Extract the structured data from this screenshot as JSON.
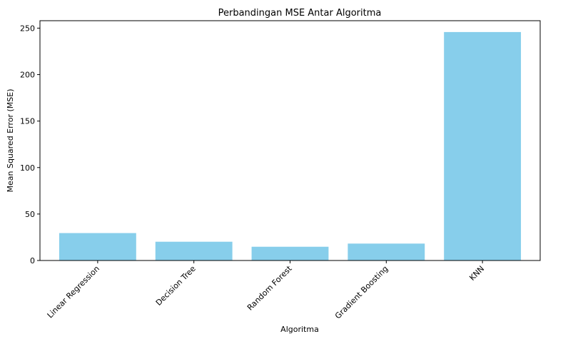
{
  "chart_data": {
    "type": "bar",
    "title": "Perbandingan MSE Antar Algoritma",
    "xlabel": "Algoritma",
    "ylabel": "Mean Squared Error (MSE)",
    "categories": [
      "Linear Regression",
      "Decision Tree",
      "Random Forest",
      "Gradient Boosting",
      "KNN"
    ],
    "values": [
      29.5,
      20.2,
      14.8,
      18.2,
      245.8
    ],
    "ylim": [
      0,
      258
    ],
    "yticks": [
      0,
      50,
      100,
      150,
      200,
      250
    ],
    "ytick_labels": [
      "0",
      "50",
      "100",
      "150",
      "200",
      "250"
    ],
    "bar_color": "#87ceeb",
    "grid": false,
    "legend": "none"
  }
}
